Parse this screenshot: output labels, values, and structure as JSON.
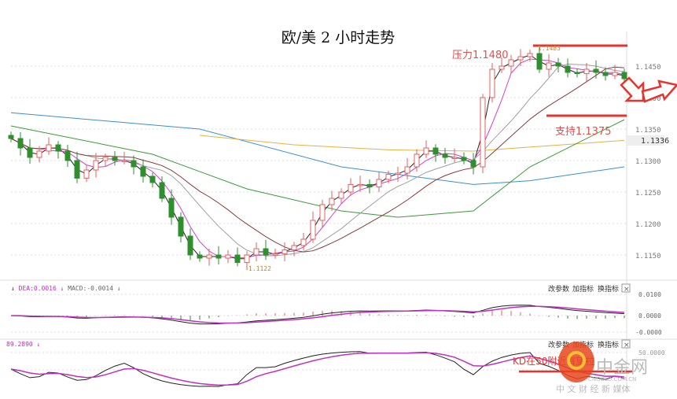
{
  "title": "欧/美 2 小时走势",
  "colors": {
    "up": "#e06060",
    "down": "#2f8f2f",
    "annot": "#e8322d",
    "ma_black": "#222222",
    "ma_pink": "#d040d0",
    "ma_gray": "#a0a0a0",
    "ma_darkred": "#8b3a3a",
    "ma_blue": "#3a8fd0",
    "ma_yellow": "#e8b040",
    "ma_green": "#3a9a3a"
  },
  "chart_data": {
    "type": "candlestick",
    "title": "欧/美 2 小时走势",
    "y_ticks": [
      "1.1450",
      "1.1400",
      "1.1350",
      "1.1300",
      "1.1250",
      "1.1200",
      "1.1150"
    ],
    "ylim": [
      1.111,
      1.1495
    ],
    "current_price": "1.1336",
    "high_label": "1.1483",
    "low_label": "1.1122",
    "closes": [
      1.1335,
      1.132,
      1.1305,
      1.1315,
      1.1325,
      1.1315,
      1.13,
      1.1272,
      1.1285,
      1.13,
      1.1305,
      1.13,
      1.13,
      1.129,
      1.1275,
      1.1265,
      1.124,
      1.121,
      1.118,
      1.115,
      1.1145,
      1.115,
      1.1145,
      1.115,
      1.1138,
      1.115,
      1.116,
      1.115,
      1.1152,
      1.1158,
      1.1165,
      1.1175,
      1.1205,
      1.123,
      1.124,
      1.125,
      1.1262,
      1.1262,
      1.1258,
      1.127,
      1.1278,
      1.128,
      1.129,
      1.131,
      1.132,
      1.131,
      1.1305,
      1.1305,
      1.13,
      1.129,
      1.14,
      1.1445,
      1.145,
      1.146,
      1.1465,
      1.147,
      1.1445,
      1.1455,
      1.145,
      1.144,
      1.1438,
      1.1445,
      1.144,
      1.1435,
      1.144,
      1.143
    ],
    "long_ma": [
      {
        "name": "blue",
        "points": [
          [
            0,
            1.1376
          ],
          [
            20,
            1.135
          ],
          [
            35,
            1.129
          ],
          [
            49,
            1.1262
          ],
          [
            55,
            1.1268
          ],
          [
            65,
            1.129
          ]
        ]
      },
      {
        "name": "yellow",
        "points": [
          [
            20,
            1.134
          ],
          [
            30,
            1.1325
          ],
          [
            40,
            1.1317
          ],
          [
            49,
            1.1315
          ],
          [
            65,
            1.1332
          ]
        ]
      },
      {
        "name": "green",
        "points": [
          [
            0,
            1.1355
          ],
          [
            15,
            1.131
          ],
          [
            25,
            1.1255
          ],
          [
            35,
            1.122
          ],
          [
            41,
            1.121
          ],
          [
            49,
            1.122
          ],
          [
            55,
            1.129
          ],
          [
            65,
            1.1365
          ]
        ]
      }
    ],
    "resistance": {
      "label": "压力1.1480",
      "value": 1.148
    },
    "support": {
      "label": "支持1.1375",
      "value": 1.1375
    },
    "macd": {
      "legend": [
        "DEA:0.0016",
        "MACD:-0.0014"
      ],
      "y_ticks": [
        "0.0100",
        "0.0000",
        "-0.0000"
      ]
    },
    "kd": {
      "legend": "89.2890",
      "annotation": "KD在50附近有望拉",
      "y_tick": "50.0000"
    }
  },
  "panel_toolbar": {
    "edit": "改参数",
    "add": "加指标",
    "swap": "换指标",
    "close": "×"
  },
  "watermark": {
    "brand": "中金网",
    "domain": "CNGOLD.COM.CN",
    "slogan": "中 文 财 经 新 媒体"
  }
}
